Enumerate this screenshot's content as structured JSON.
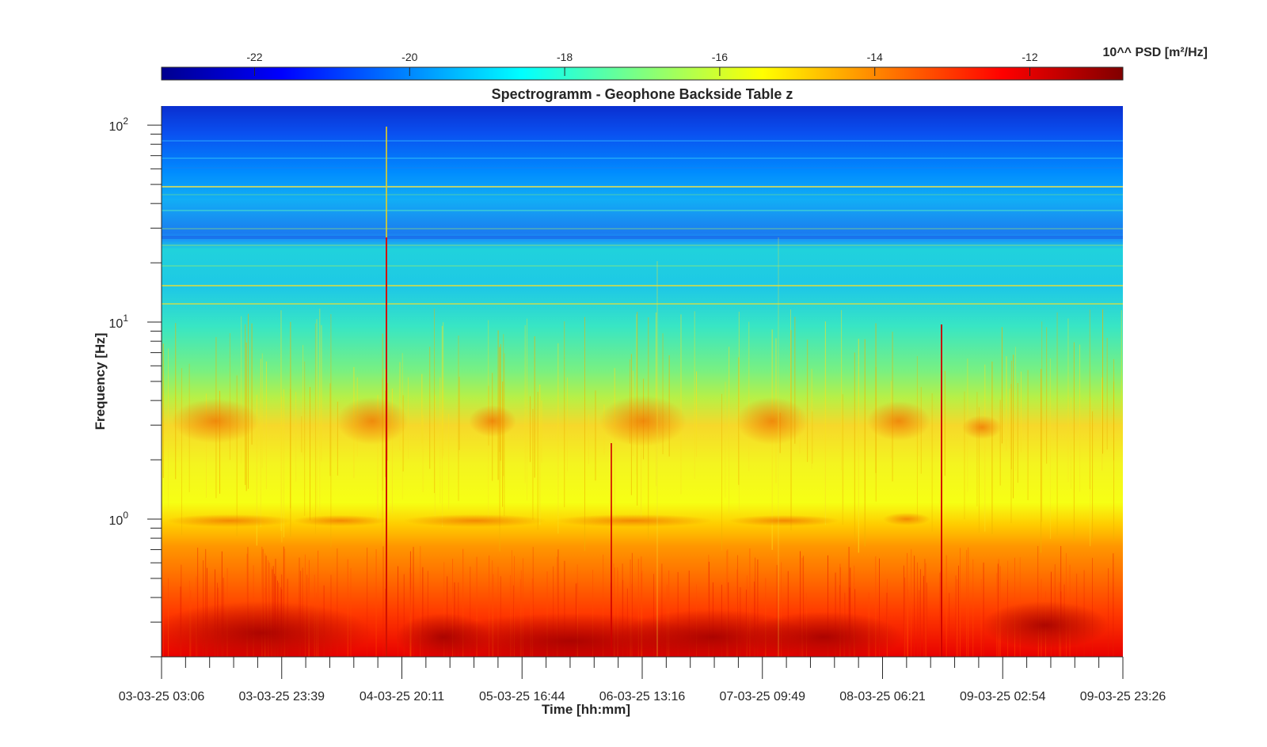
{
  "chart_data": {
    "type": "heatmap",
    "title": "Spectrogramm - Geophone Backside Table z",
    "xlabel": "Time [hh:mm]",
    "ylabel": "Frequency [Hz]",
    "colorbar_label": "10^^ PSD [m²/Hz]",
    "colormap": "jet",
    "colorbar_range": [
      -23.2,
      -10.8
    ],
    "colorbar_ticks": [
      "-22",
      "-20",
      "-18",
      "-16",
      "-14",
      "-12"
    ],
    "y_scale": "log",
    "y_range": [
      0.2,
      125
    ],
    "y_tick_labels": [
      {
        "base": "10",
        "exp": "2"
      },
      {
        "base": "10",
        "exp": "1"
      },
      {
        "base": "10",
        "exp": "0"
      }
    ],
    "x_tick_labels": [
      "03-03-25 03:06",
      "03-03-25 23:39",
      "04-03-25 20:11",
      "05-03-25 16:44",
      "06-03-25 13:16",
      "07-03-25 09:49",
      "08-03-25 06:21",
      "09-03-25 02:54",
      "09-03-25 23:26"
    ],
    "grid": false,
    "colorbar_position": "top"
  }
}
